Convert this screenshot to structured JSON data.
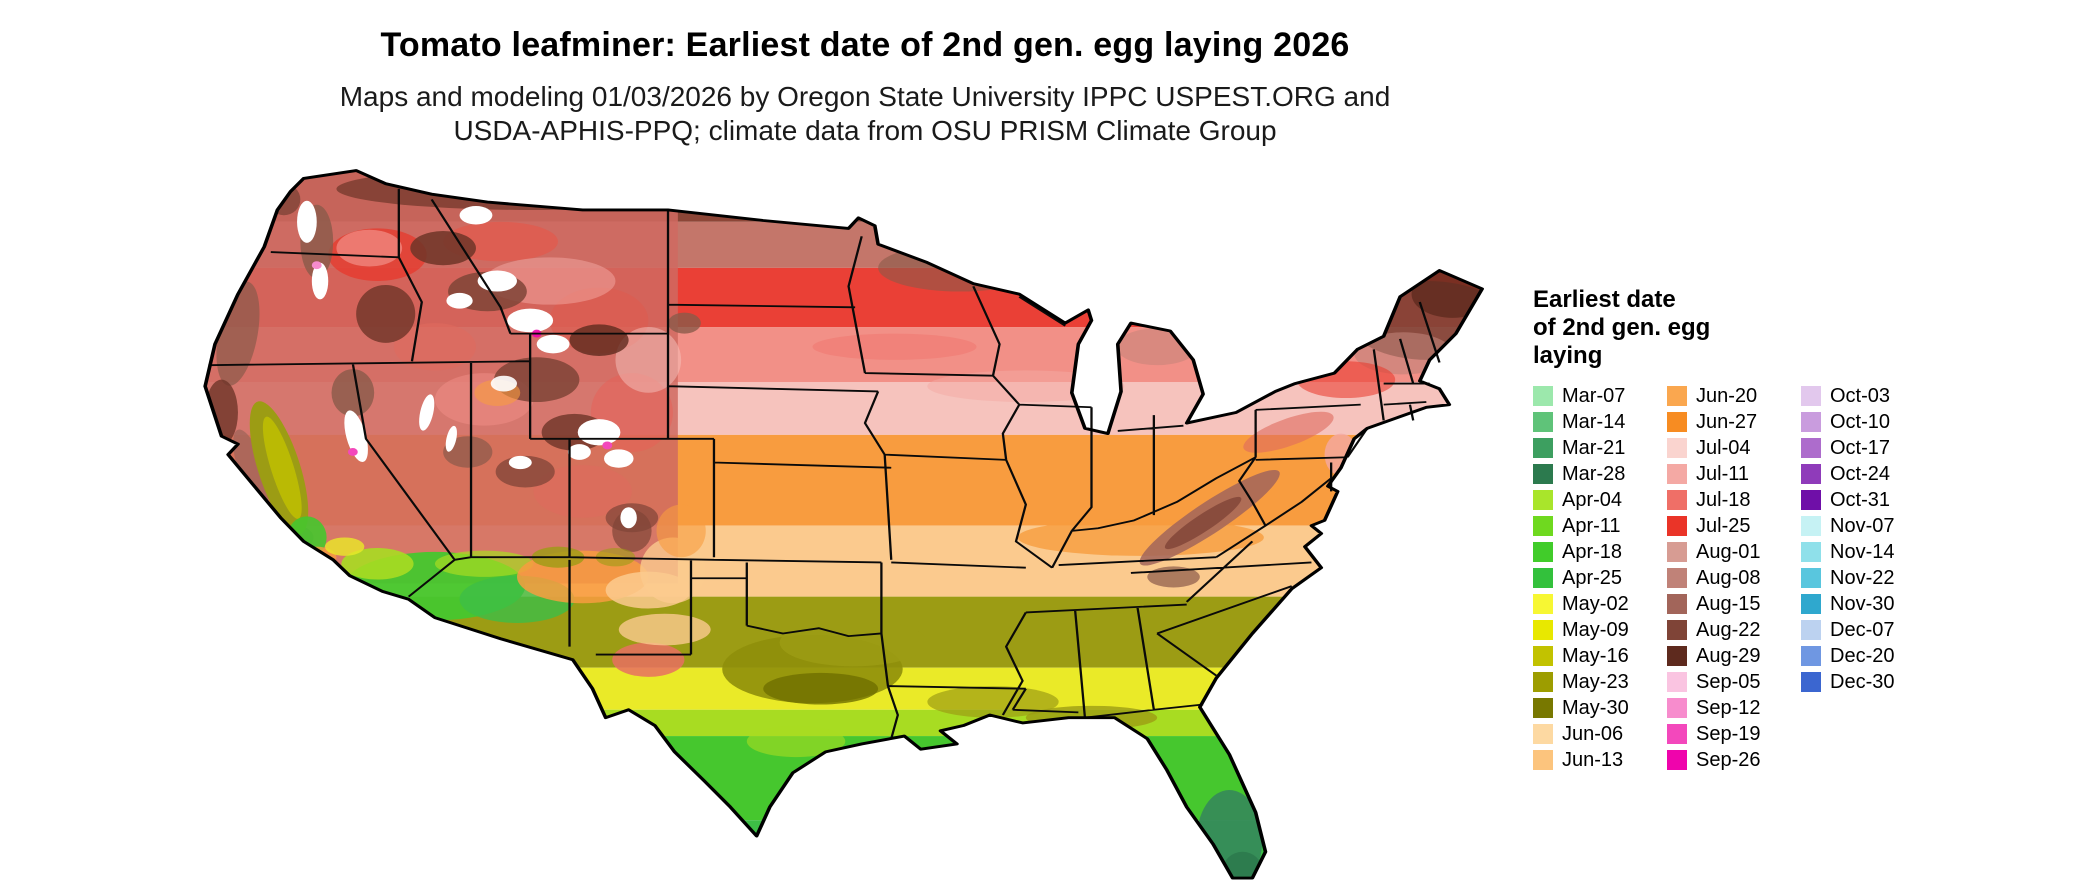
{
  "header": {
    "title": "Tomato leafminer: Earliest date of 2nd gen. egg laying 2026",
    "subtitle_line1": "Maps and modeling 01/03/2026 by Oregon State University IPPC USPEST.ORG and",
    "subtitle_line2": "USDA-APHIS-PPQ; climate data from OSU PRISM Climate Group"
  },
  "legend": {
    "title_lines": [
      "Earliest date",
      "of 2nd gen. egg",
      "laying"
    ],
    "columns": [
      [
        {
          "label": "Mar-07",
          "color": "#9CE8AC"
        },
        {
          "label": "Mar-14",
          "color": "#5FC379"
        },
        {
          "label": "Mar-21",
          "color": "#3D9F60"
        },
        {
          "label": "Mar-28",
          "color": "#2C7A4E"
        },
        {
          "label": "Apr-04",
          "color": "#A9E52B"
        },
        {
          "label": "Apr-11",
          "color": "#6FD91F"
        },
        {
          "label": "Apr-18",
          "color": "#41CC2A"
        },
        {
          "label": "Apr-25",
          "color": "#33C13C"
        },
        {
          "label": "May-02",
          "color": "#F7F733"
        },
        {
          "label": "May-09",
          "color": "#E8E800"
        },
        {
          "label": "May-16",
          "color": "#C2C200"
        },
        {
          "label": "May-23",
          "color": "#9D9D00"
        },
        {
          "label": "May-30",
          "color": "#787800"
        },
        {
          "label": "Jun-06",
          "color": "#FDD9A2"
        },
        {
          "label": "Jun-13",
          "color": "#FCC47D"
        }
      ],
      [
        {
          "label": "Jun-20",
          "color": "#FAA74F"
        },
        {
          "label": "Jun-27",
          "color": "#F78C22"
        },
        {
          "label": "Jul-04",
          "color": "#FAD4CF"
        },
        {
          "label": "Jul-11",
          "color": "#F4A9A4"
        },
        {
          "label": "Jul-18",
          "color": "#EF6F67"
        },
        {
          "label": "Jul-25",
          "color": "#EA3428"
        },
        {
          "label": "Aug-01",
          "color": "#D79C93"
        },
        {
          "label": "Aug-08",
          "color": "#C08278"
        },
        {
          "label": "Aug-15",
          "color": "#A2655A"
        },
        {
          "label": "Aug-22",
          "color": "#7F4437"
        },
        {
          "label": "Aug-29",
          "color": "#5E2A1E"
        },
        {
          "label": "Sep-05",
          "color": "#FAC4E1"
        },
        {
          "label": "Sep-12",
          "color": "#F78CCD"
        },
        {
          "label": "Sep-19",
          "color": "#F348BC"
        },
        {
          "label": "Sep-26",
          "color": "#EF04AC"
        }
      ],
      [
        {
          "label": "Oct-03",
          "color": "#E2C8ED"
        },
        {
          "label": "Oct-10",
          "color": "#C99CDE"
        },
        {
          "label": "Oct-17",
          "color": "#AD6CCC"
        },
        {
          "label": "Oct-24",
          "color": "#8F3BBA"
        },
        {
          "label": "Oct-31",
          "color": "#6F0FA8"
        },
        {
          "label": "Nov-07",
          "color": "#C6F2F4"
        },
        {
          "label": "Nov-14",
          "color": "#8FE0EA"
        },
        {
          "label": "Nov-22",
          "color": "#59C6DE"
        },
        {
          "label": "Nov-30",
          "color": "#2FA8CE"
        },
        {
          "label": "Dec-07",
          "color": "#BCD2F0"
        },
        {
          "label": "Dec-20",
          "color": "#6F97E2"
        },
        {
          "label": "Dec-30",
          "color": "#3B66D0"
        }
      ]
    ]
  },
  "map_palette": {
    "top_brown": "#8C4637",
    "north_rosy": "#C4766A",
    "red": "#EA4036",
    "salmon": "#F29087",
    "light_pink": "#F6C3BD",
    "orange": "#F89C3F",
    "tan": "#FBCA8E",
    "olive": "#9C9C14",
    "yellow": "#EAEA28",
    "yellow_green": "#A8DC22",
    "green": "#46C72E",
    "green2": "#3DBE46",
    "seagreen": "#35885A"
  }
}
